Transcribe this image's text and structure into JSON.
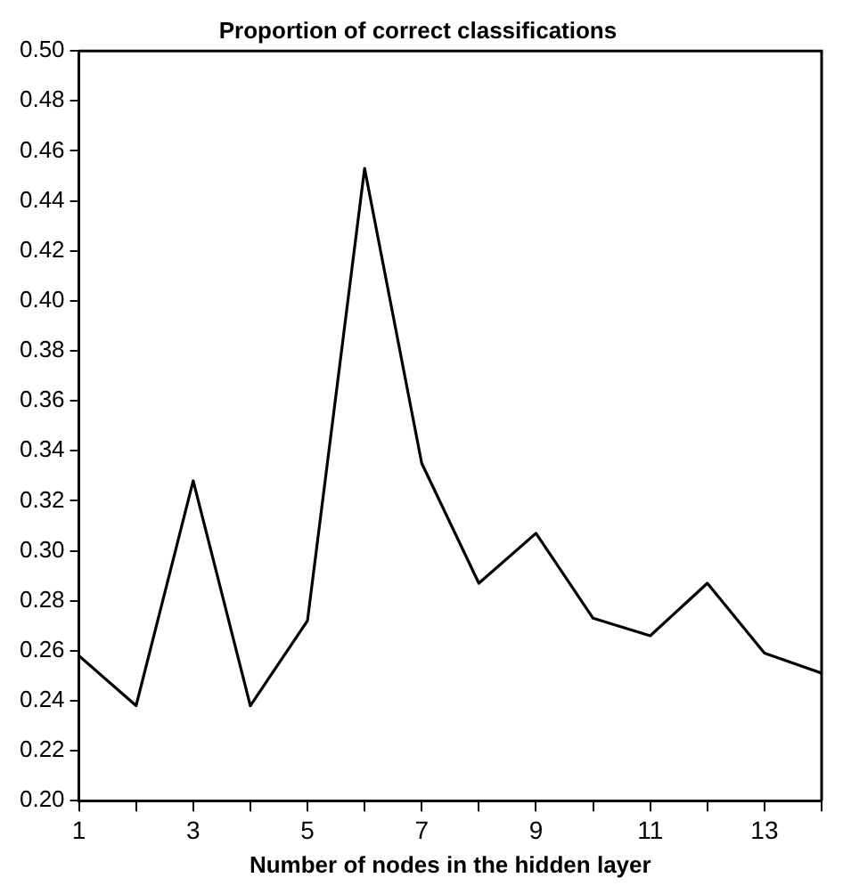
{
  "chart_data": {
    "type": "line",
    "title": "Proportion of correct classifications",
    "xlabel": "Number of nodes in the hidden layer",
    "x": [
      1,
      2,
      3,
      4,
      5,
      6,
      7,
      8,
      9,
      10,
      11,
      12,
      13,
      14
    ],
    "series": [
      {
        "color": "#000000",
        "values": [
          0.258,
          0.238,
          0.328,
          0.238,
          0.272,
          0.453,
          0.335,
          0.287,
          0.307,
          0.273,
          0.266,
          0.287,
          0.259,
          0.251
        ]
      }
    ],
    "xlim": [
      1,
      14
    ],
    "xticks": [
      1,
      {
        "value": 2,
        "label": null
      },
      3,
      {
        "value": 4,
        "label": null
      },
      5,
      {
        "value": 6,
        "label": null
      },
      7,
      {
        "value": 8,
        "label": null
      },
      9,
      {
        "value": 10,
        "label": null
      },
      11,
      {
        "value": 12,
        "label": null
      },
      13,
      {
        "value": 14,
        "label": null
      }
    ],
    "ylim": [
      0.2,
      0.5
    ],
    "yticks": [
      {
        "value": 0.2,
        "label": "0.20"
      },
      {
        "value": 0.22,
        "label": "0.22"
      },
      {
        "value": 0.24,
        "label": "0.24"
      },
      {
        "value": 0.26,
        "label": "0.26"
      },
      {
        "value": 0.28,
        "label": "0.28"
      },
      {
        "value": 0.3,
        "label": "0.30"
      },
      {
        "value": 0.32,
        "label": "0.32"
      },
      {
        "value": 0.34,
        "label": "0.34"
      },
      {
        "value": 0.36,
        "label": "0.36"
      },
      {
        "value": 0.38,
        "label": "0.38"
      },
      {
        "value": 0.4,
        "label": "0.40"
      },
      {
        "value": 0.42,
        "label": "0.42"
      },
      {
        "value": 0.44,
        "label": "0.44"
      },
      {
        "value": 0.46,
        "label": "0.46"
      },
      {
        "value": 0.48,
        "label": "0.48"
      },
      {
        "value": 0.5,
        "label": "0.50"
      }
    ],
    "grid": false,
    "legend": false,
    "marker": "none",
    "line_style": "solid"
  }
}
